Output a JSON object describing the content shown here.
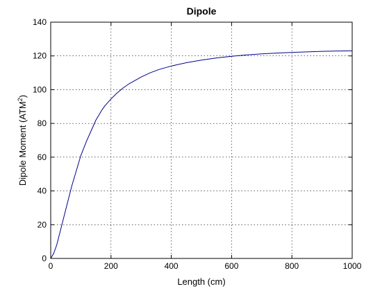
{
  "chart_data": {
    "type": "line",
    "title": "Dipole",
    "xlabel": "Length (cm)",
    "ylabel_main": "Dipole Moment (ATM",
    "ylabel_sup": "2",
    "ylabel_end": ")",
    "xlim": [
      0,
      1000
    ],
    "ylim": [
      0,
      140
    ],
    "xticks": [
      0,
      200,
      400,
      600,
      800,
      1000
    ],
    "yticks": [
      0,
      20,
      40,
      60,
      80,
      100,
      120,
      140
    ],
    "xtick_labels": [
      "0",
      "200",
      "400",
      "600",
      "800",
      "1000"
    ],
    "ytick_labels": [
      "0",
      "20",
      "40",
      "60",
      "80",
      "100",
      "120",
      "140"
    ],
    "grid": true,
    "series": [
      {
        "color": "#00008b",
        "x": [
          0,
          10,
          20,
          30,
          40,
          50,
          60,
          70,
          80,
          90,
          100,
          110,
          120,
          130,
          140,
          150,
          160,
          170,
          180,
          190,
          200,
          220,
          240,
          260,
          280,
          300,
          330,
          360,
          400,
          450,
          500,
          550,
          600,
          650,
          700,
          750,
          800,
          850,
          900,
          950,
          1000
        ],
        "y": [
          0,
          3,
          8,
          15,
          22,
          29,
          36,
          43,
          49,
          55,
          61,
          65.5,
          70,
          74,
          78,
          82,
          85,
          88,
          90.5,
          92.5,
          94.5,
          98,
          101,
          103.5,
          105.5,
          107.5,
          110,
          112,
          114,
          116,
          117.5,
          118.8,
          119.8,
          120.6,
          121.2,
          121.7,
          122.1,
          122.4,
          122.7,
          122.9,
          123
        ]
      }
    ]
  }
}
